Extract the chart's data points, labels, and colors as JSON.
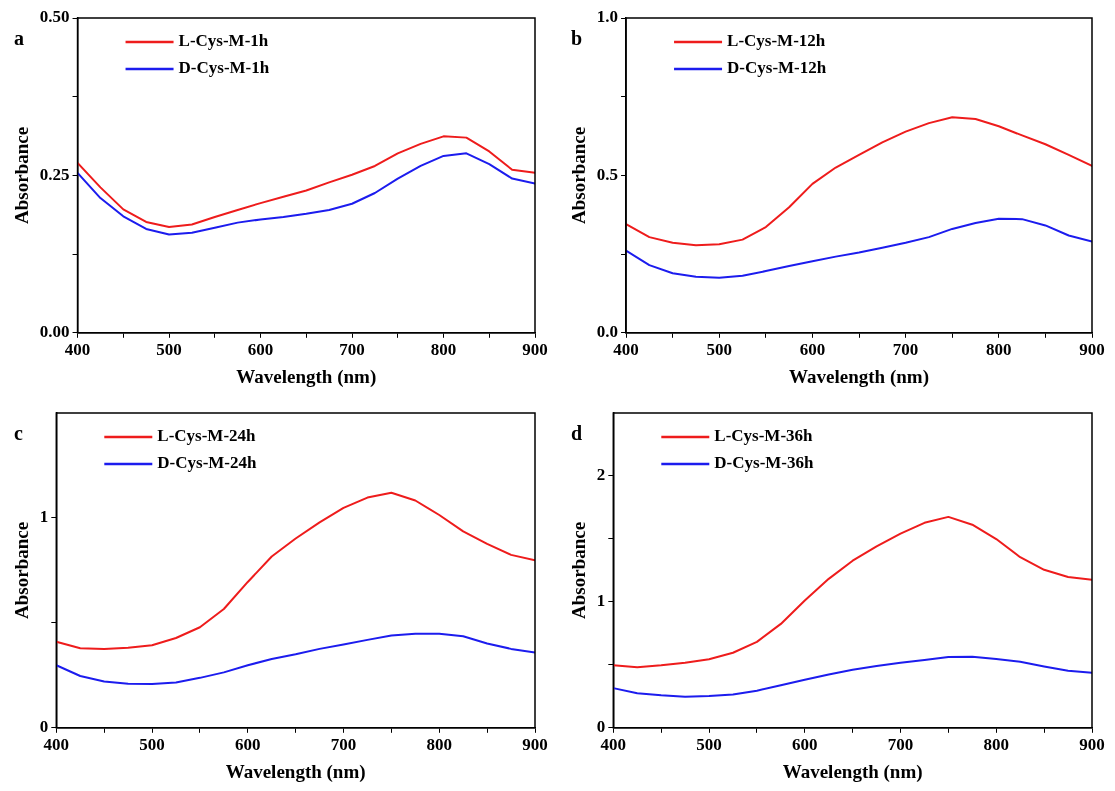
{
  "chart_data": [
    {
      "type": "line",
      "title": "a",
      "xlabel": "Wavelength (nm)",
      "ylabel": "Absorbance",
      "legend": "top left",
      "grid": false,
      "marker": "none",
      "line_style": "solid",
      "x": [
        400,
        425,
        450,
        475,
        500,
        525,
        550,
        575,
        600,
        625,
        650,
        675,
        700,
        725,
        750,
        775,
        800,
        825,
        850,
        875,
        900
      ],
      "xlim": [
        400,
        900
      ],
      "xticks": [
        400,
        {
          "value": 450,
          "label": null
        },
        500,
        {
          "value": 550,
          "label": null
        },
        600,
        {
          "value": 650,
          "label": null
        },
        700,
        {
          "value": 750,
          "label": null
        },
        800,
        {
          "value": 850,
          "label": null
        },
        900
      ],
      "ylim": [
        0,
        0.5
      ],
      "yticks": [
        {
          "value": 0,
          "label": "0.00"
        },
        {
          "value": 0.125,
          "label": null
        },
        {
          "value": 0.25,
          "label": "0.25"
        },
        {
          "value": 0.375,
          "label": null
        },
        {
          "value": 0.5,
          "label": "0.50"
        }
      ],
      "series": [
        {
          "name": "L-Cys-M-1h",
          "color": "#ee1c1c",
          "values": [
            0.27,
            0.231,
            0.196,
            0.176,
            0.168,
            0.172,
            0.184,
            0.195,
            0.206,
            0.216,
            0.226,
            0.239,
            0.251,
            0.265,
            0.285,
            0.3,
            0.312,
            0.31,
            0.288,
            0.259,
            0.254
          ]
        },
        {
          "name": "D-Cys-M-1h",
          "color": "#1c1cee",
          "values": [
            0.254,
            0.214,
            0.185,
            0.165,
            0.156,
            0.159,
            0.167,
            0.175,
            0.18,
            0.184,
            0.189,
            0.195,
            0.205,
            0.222,
            0.245,
            0.265,
            0.281,
            0.285,
            0.268,
            0.245,
            0.237
          ]
        }
      ]
    },
    {
      "type": "line",
      "title": "b",
      "xlabel": "Wavelength (nm)",
      "ylabel": "Absorbance",
      "legend": "top left",
      "grid": false,
      "marker": "none",
      "line_style": "solid",
      "x": [
        400,
        425,
        450,
        475,
        500,
        525,
        550,
        575,
        600,
        625,
        650,
        675,
        700,
        725,
        750,
        775,
        800,
        825,
        850,
        875,
        900
      ],
      "xlim": [
        400,
        900
      ],
      "xticks": [
        400,
        {
          "value": 450,
          "label": null
        },
        500,
        {
          "value": 550,
          "label": null
        },
        600,
        {
          "value": 650,
          "label": null
        },
        700,
        {
          "value": 750,
          "label": null
        },
        800,
        {
          "value": 850,
          "label": null
        },
        900
      ],
      "ylim": [
        0,
        1
      ],
      "yticks": [
        {
          "value": 0,
          "label": "0.0"
        },
        {
          "value": 0.25,
          "label": null
        },
        0.5,
        {
          "value": 0.75,
          "label": null
        },
        {
          "value": 1,
          "label": "1.0"
        }
      ],
      "series": [
        {
          "name": "L-Cys-M-12h",
          "color": "#ee1c1c",
          "values": [
            0.345,
            0.304,
            0.286,
            0.278,
            0.281,
            0.296,
            0.336,
            0.399,
            0.473,
            0.525,
            0.565,
            0.605,
            0.639,
            0.666,
            0.685,
            0.679,
            0.656,
            0.627,
            0.599,
            0.565,
            0.53
          ]
        },
        {
          "name": "D-Cys-M-12h",
          "color": "#1c1cee",
          "values": [
            0.261,
            0.215,
            0.189,
            0.178,
            0.175,
            0.181,
            0.196,
            0.212,
            0.227,
            0.242,
            0.255,
            0.27,
            0.286,
            0.304,
            0.33,
            0.349,
            0.362,
            0.361,
            0.341,
            0.309,
            0.29
          ]
        }
      ]
    },
    {
      "type": "line",
      "title": "c",
      "xlabel": "Wavelength (nm)",
      "ylabel": "Absorbance",
      "legend": "top left",
      "grid": false,
      "marker": "none",
      "line_style": "solid",
      "x": [
        400,
        425,
        450,
        475,
        500,
        525,
        550,
        575,
        600,
        625,
        650,
        675,
        700,
        725,
        750,
        775,
        800,
        825,
        850,
        875,
        900
      ],
      "xlim": [
        400,
        900
      ],
      "xticks": [
        400,
        {
          "value": 450,
          "label": null
        },
        500,
        {
          "value": 550,
          "label": null
        },
        600,
        {
          "value": 650,
          "label": null
        },
        700,
        {
          "value": 750,
          "label": null
        },
        800,
        {
          "value": 850,
          "label": null
        },
        900
      ],
      "ylim": [
        0,
        1.5
      ],
      "yticks": [
        0,
        {
          "value": 0.5,
          "label": null
        },
        1
      ],
      "series": [
        {
          "name": "L-Cys-M-24h",
          "color": "#ee1c1c",
          "values": [
            0.41,
            0.379,
            0.376,
            0.381,
            0.393,
            0.428,
            0.479,
            0.566,
            0.695,
            0.816,
            0.902,
            0.979,
            1.048,
            1.097,
            1.12,
            1.083,
            1.014,
            0.936,
            0.876,
            0.824,
            0.798
          ]
        },
        {
          "name": "D-Cys-M-24h",
          "color": "#1c1cee",
          "values": [
            0.298,
            0.247,
            0.221,
            0.21,
            0.209,
            0.216,
            0.238,
            0.264,
            0.298,
            0.328,
            0.35,
            0.376,
            0.397,
            0.419,
            0.44,
            0.448,
            0.448,
            0.436,
            0.402,
            0.376,
            0.359
          ]
        }
      ]
    },
    {
      "type": "line",
      "title": "d",
      "xlabel": "Wavelength (nm)",
      "ylabel": "Absorbance",
      "legend": "top left",
      "grid": false,
      "marker": "none",
      "line_style": "solid",
      "x": [
        400,
        425,
        450,
        475,
        500,
        525,
        550,
        575,
        600,
        625,
        650,
        675,
        700,
        725,
        750,
        775,
        800,
        825,
        850,
        875,
        900
      ],
      "xlim": [
        400,
        900
      ],
      "xticks": [
        400,
        {
          "value": 450,
          "label": null
        },
        500,
        {
          "value": 550,
          "label": null
        },
        600,
        {
          "value": 650,
          "label": null
        },
        700,
        {
          "value": 750,
          "label": null
        },
        800,
        {
          "value": 850,
          "label": null
        },
        900
      ],
      "ylim": [
        0,
        2.5
      ],
      "yticks": [
        0,
        {
          "value": 0.5,
          "label": null
        },
        1,
        {
          "value": 1.5,
          "label": null
        },
        2
      ],
      "series": [
        {
          "name": "L-Cys-M-36h",
          "color": "#ee1c1c",
          "values": [
            0.496,
            0.481,
            0.496,
            0.516,
            0.544,
            0.596,
            0.682,
            0.825,
            1.011,
            1.183,
            1.327,
            1.441,
            1.542,
            1.628,
            1.675,
            1.613,
            1.499,
            1.355,
            1.255,
            1.198,
            1.175
          ]
        },
        {
          "name": "D-Cys-M-36h",
          "color": "#1c1cee",
          "values": [
            0.315,
            0.275,
            0.258,
            0.246,
            0.252,
            0.264,
            0.295,
            0.338,
            0.381,
            0.424,
            0.461,
            0.49,
            0.516,
            0.539,
            0.562,
            0.565,
            0.547,
            0.524,
            0.487,
            0.453,
            0.438
          ]
        }
      ]
    }
  ]
}
